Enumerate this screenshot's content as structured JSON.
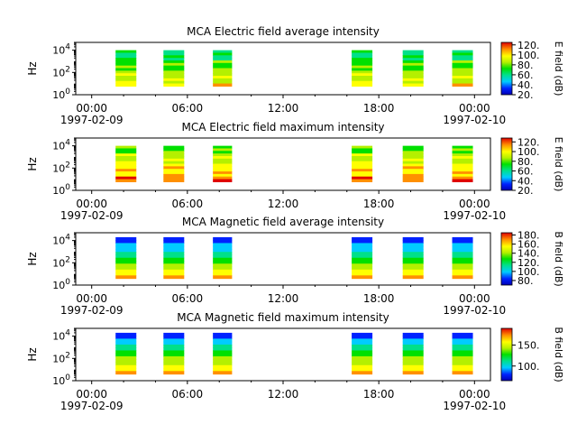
{
  "chart_data": [
    {
      "type": "heatmap",
      "title": "MCA  Electric field average intensity",
      "ylabel": "Hz",
      "yscale": "log",
      "ylim": [
        1,
        50000
      ],
      "y_ticks": [
        {
          "base": "10",
          "exp": "0"
        },
        {
          "base": "10",
          "exp": "2"
        },
        {
          "base": "10",
          "exp": "4"
        }
      ],
      "xlim_hours": [
        -1,
        25
      ],
      "x_ticks": [
        {
          "label": "00:00",
          "hour": 0,
          "date": "1997-02-09"
        },
        {
          "label": "06:00",
          "hour": 6
        },
        {
          "label": "12:00",
          "hour": 12
        },
        {
          "label": "18:00",
          "hour": 18
        },
        {
          "label": "00:00",
          "hour": 24,
          "date": "1997-02-10"
        }
      ],
      "colorbar": {
        "label": "E field (dB)",
        "range": [
          20,
          125
        ],
        "ticks": [
          "20.",
          "40.",
          "60.",
          "80.",
          "100.",
          "120."
        ]
      },
      "data_blocks_hours": [
        [
          1.5,
          2.8
        ],
        [
          4.5,
          5.8
        ],
        [
          7.6,
          8.8
        ],
        [
          16.3,
          17.6
        ],
        [
          19.5,
          20.8
        ],
        [
          22.6,
          23.9
        ]
      ]
    },
    {
      "type": "heatmap",
      "title": "MCA  Electric field maximum intensity",
      "ylabel": "Hz",
      "yscale": "log",
      "ylim": [
        1,
        50000
      ],
      "y_ticks": [
        {
          "base": "10",
          "exp": "0"
        },
        {
          "base": "10",
          "exp": "2"
        },
        {
          "base": "10",
          "exp": "4"
        }
      ],
      "xlim_hours": [
        -1,
        25
      ],
      "x_ticks": [
        {
          "label": "00:00",
          "hour": 0,
          "date": "1997-02-09"
        },
        {
          "label": "06:00",
          "hour": 6
        },
        {
          "label": "12:00",
          "hour": 12
        },
        {
          "label": "18:00",
          "hour": 18
        },
        {
          "label": "00:00",
          "hour": 24,
          "date": "1997-02-10"
        }
      ],
      "colorbar": {
        "label": "E field (dB)",
        "range": [
          20,
          128
        ],
        "ticks": [
          "20.",
          "40.",
          "60.",
          "80.",
          "100.",
          "120."
        ]
      },
      "data_blocks_hours": [
        [
          1.5,
          2.8
        ],
        [
          4.5,
          5.8
        ],
        [
          7.6,
          8.8
        ],
        [
          16.3,
          17.6
        ],
        [
          19.5,
          20.8
        ],
        [
          22.6,
          23.9
        ]
      ]
    },
    {
      "type": "heatmap",
      "title": "MCA  Magnetic field average intensity",
      "ylabel": "Hz",
      "yscale": "log",
      "ylim": [
        1,
        50000
      ],
      "y_ticks": [
        {
          "base": "10",
          "exp": "0"
        },
        {
          "base": "10",
          "exp": "2"
        },
        {
          "base": "10",
          "exp": "4"
        }
      ],
      "xlim_hours": [
        -1,
        25
      ],
      "x_ticks": [
        {
          "label": "00:00",
          "hour": 0,
          "date": "1997-02-09"
        },
        {
          "label": "06:00",
          "hour": 6
        },
        {
          "label": "12:00",
          "hour": 12
        },
        {
          "label": "18:00",
          "hour": 18
        },
        {
          "label": "00:00",
          "hour": 24,
          "date": "1997-02-10"
        }
      ],
      "colorbar": {
        "label": "B field (dB)",
        "range": [
          70,
          185
        ],
        "ticks": [
          "80.",
          "100.",
          "120.",
          "140.",
          "160.",
          "180."
        ]
      },
      "data_blocks_hours": [
        [
          1.5,
          2.8
        ],
        [
          4.5,
          5.8
        ],
        [
          7.6,
          8.8
        ],
        [
          16.3,
          17.6
        ],
        [
          19.5,
          20.8
        ],
        [
          22.6,
          23.9
        ]
      ]
    },
    {
      "type": "heatmap",
      "title": "MCA  Magnetic field maximum intensity",
      "ylabel": "Hz",
      "yscale": "log",
      "ylim": [
        1,
        50000
      ],
      "y_ticks": [
        {
          "base": "10",
          "exp": "0"
        },
        {
          "base": "10",
          "exp": "2"
        },
        {
          "base": "10",
          "exp": "4"
        }
      ],
      "xlim_hours": [
        -1,
        25
      ],
      "x_ticks": [
        {
          "label": "00:00",
          "hour": 0,
          "date": "1997-02-09"
        },
        {
          "label": "06:00",
          "hour": 6
        },
        {
          "label": "12:00",
          "hour": 12
        },
        {
          "label": "18:00",
          "hour": 18
        },
        {
          "label": "00:00",
          "hour": 24,
          "date": "1997-02-10"
        }
      ],
      "colorbar": {
        "label": "B field (dB)",
        "range": [
          65,
          190
        ],
        "ticks": [
          "100.",
          "150."
        ]
      },
      "data_blocks_hours": [
        [
          1.5,
          2.8
        ],
        [
          4.5,
          5.8
        ],
        [
          7.6,
          8.8
        ],
        [
          16.3,
          17.6
        ],
        [
          19.5,
          20.8
        ],
        [
          22.6,
          23.9
        ]
      ]
    }
  ]
}
